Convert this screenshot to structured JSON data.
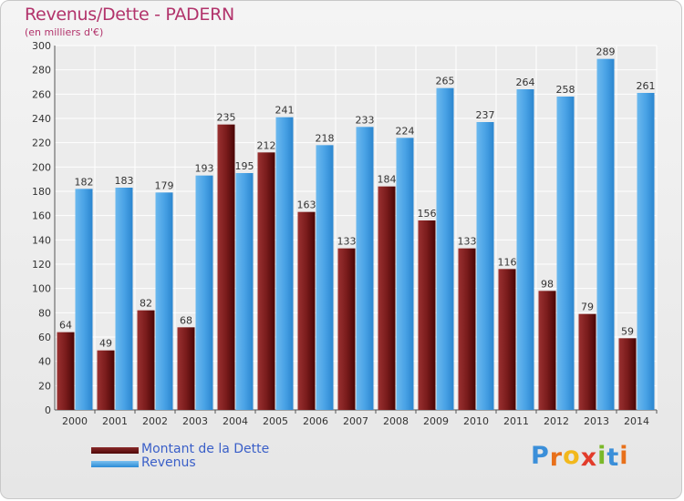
{
  "title": "Revenus/Dette - PADERN",
  "subtitle": "(en milliers d'€)",
  "chart_data": {
    "type": "bar",
    "title": "Revenus/Dette - PADERN",
    "ylabel": "",
    "xlabel": "",
    "categories": [
      "2000",
      "2001",
      "2002",
      "2003",
      "2004",
      "2005",
      "2006",
      "2007",
      "2008",
      "2009",
      "2010",
      "2011",
      "2012",
      "2013",
      "2014"
    ],
    "series": [
      {
        "name": "Montant de la Dette",
        "color": "#7a1c1c",
        "values": [
          64,
          49,
          82,
          68,
          235,
          212,
          163,
          133,
          184,
          156,
          133,
          116,
          98,
          79,
          59
        ]
      },
      {
        "name": "Revenus",
        "color": "#4aa3e6",
        "values": [
          182,
          183,
          179,
          193,
          195,
          241,
          218,
          233,
          224,
          265,
          237,
          264,
          258,
          289,
          261
        ]
      }
    ],
    "ylim": [
      0,
      300
    ],
    "yticks": [
      0,
      20,
      40,
      60,
      80,
      100,
      120,
      140,
      160,
      180,
      200,
      220,
      240,
      260,
      280,
      300
    ],
    "grid": true,
    "legend_position": "bottom-left"
  },
  "legend": [
    {
      "label": "Montant de la Dette"
    },
    {
      "label": "Revenus"
    }
  ],
  "brand": {
    "text": "Proxiti",
    "letters": [
      {
        "ch": "P",
        "color": "#3b8fd9"
      },
      {
        "ch": "r",
        "color": "#e8701a"
      },
      {
        "ch": "o",
        "color": "#f2b81c"
      },
      {
        "ch": "x",
        "color": "#e23c2b"
      },
      {
        "ch": "i",
        "color": "#7ab829"
      },
      {
        "ch": "t",
        "color": "#3b8fd9"
      },
      {
        "ch": "i",
        "color": "#e8701a"
      }
    ]
  }
}
